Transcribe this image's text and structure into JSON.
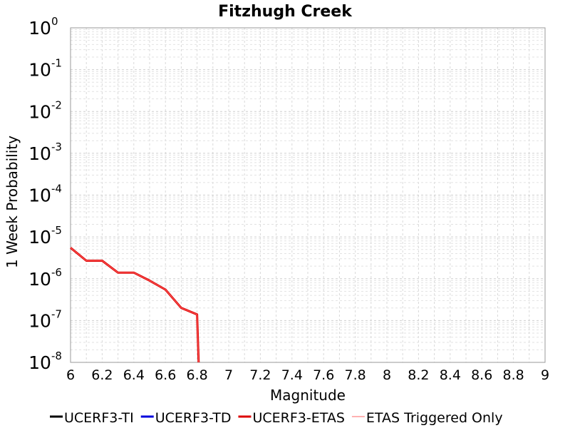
{
  "chart_data": {
    "type": "line",
    "title": "Fitzhugh Creek",
    "xlabel": "Magnitude",
    "ylabel": "1 Week Probability",
    "xlim": [
      6,
      9
    ],
    "ylim": [
      1e-08,
      1
    ],
    "y_scale": "log",
    "grid": true,
    "legend_placement": "bottom",
    "x_tick_labels": [
      "6",
      "6.2",
      "6.4",
      "6.6",
      "6.8",
      "7",
      "7.2",
      "7.4",
      "7.6",
      "7.8",
      "8",
      "8.2",
      "8.4",
      "8.6",
      "8.8",
      "9"
    ],
    "y_tick_labels": [
      {
        "base": "10",
        "exp": "0"
      },
      {
        "base": "10",
        "exp": "-1"
      },
      {
        "base": "10",
        "exp": "-2"
      },
      {
        "base": "10",
        "exp": "-3"
      },
      {
        "base": "10",
        "exp": "-4"
      },
      {
        "base": "10",
        "exp": "-5"
      },
      {
        "base": "10",
        "exp": "-6"
      },
      {
        "base": "10",
        "exp": "-7"
      },
      {
        "base": "10",
        "exp": "-8"
      }
    ],
    "series": [
      {
        "name": "UCERF3-TI",
        "color": "#000000",
        "style": "thick",
        "x": [],
        "y": []
      },
      {
        "name": "UCERF3-TD",
        "color": "#0000dd",
        "style": "thick",
        "x": [],
        "y": []
      },
      {
        "name": "UCERF3-ETAS",
        "color": "#dd0000",
        "style": "thick",
        "x": [
          6.0,
          6.1,
          6.2,
          6.3,
          6.4,
          6.5,
          6.6,
          6.7,
          6.8,
          6.81
        ],
        "y": [
          5.5e-06,
          2.7e-06,
          2.7e-06,
          1.4e-06,
          1.4e-06,
          9e-07,
          5.5e-07,
          2e-07,
          1.4e-07,
          1e-08
        ]
      },
      {
        "name": "ETAS Triggered Only",
        "color": "#ff6666",
        "style": "thin",
        "x": [
          6.0,
          6.1,
          6.2,
          6.3,
          6.4,
          6.5,
          6.6,
          6.7,
          6.8,
          6.81
        ],
        "y": [
          5.5e-06,
          2.7e-06,
          2.7e-06,
          1.4e-06,
          1.4e-06,
          9e-07,
          5.5e-07,
          2e-07,
          1.4e-07,
          1e-08
        ]
      }
    ]
  }
}
